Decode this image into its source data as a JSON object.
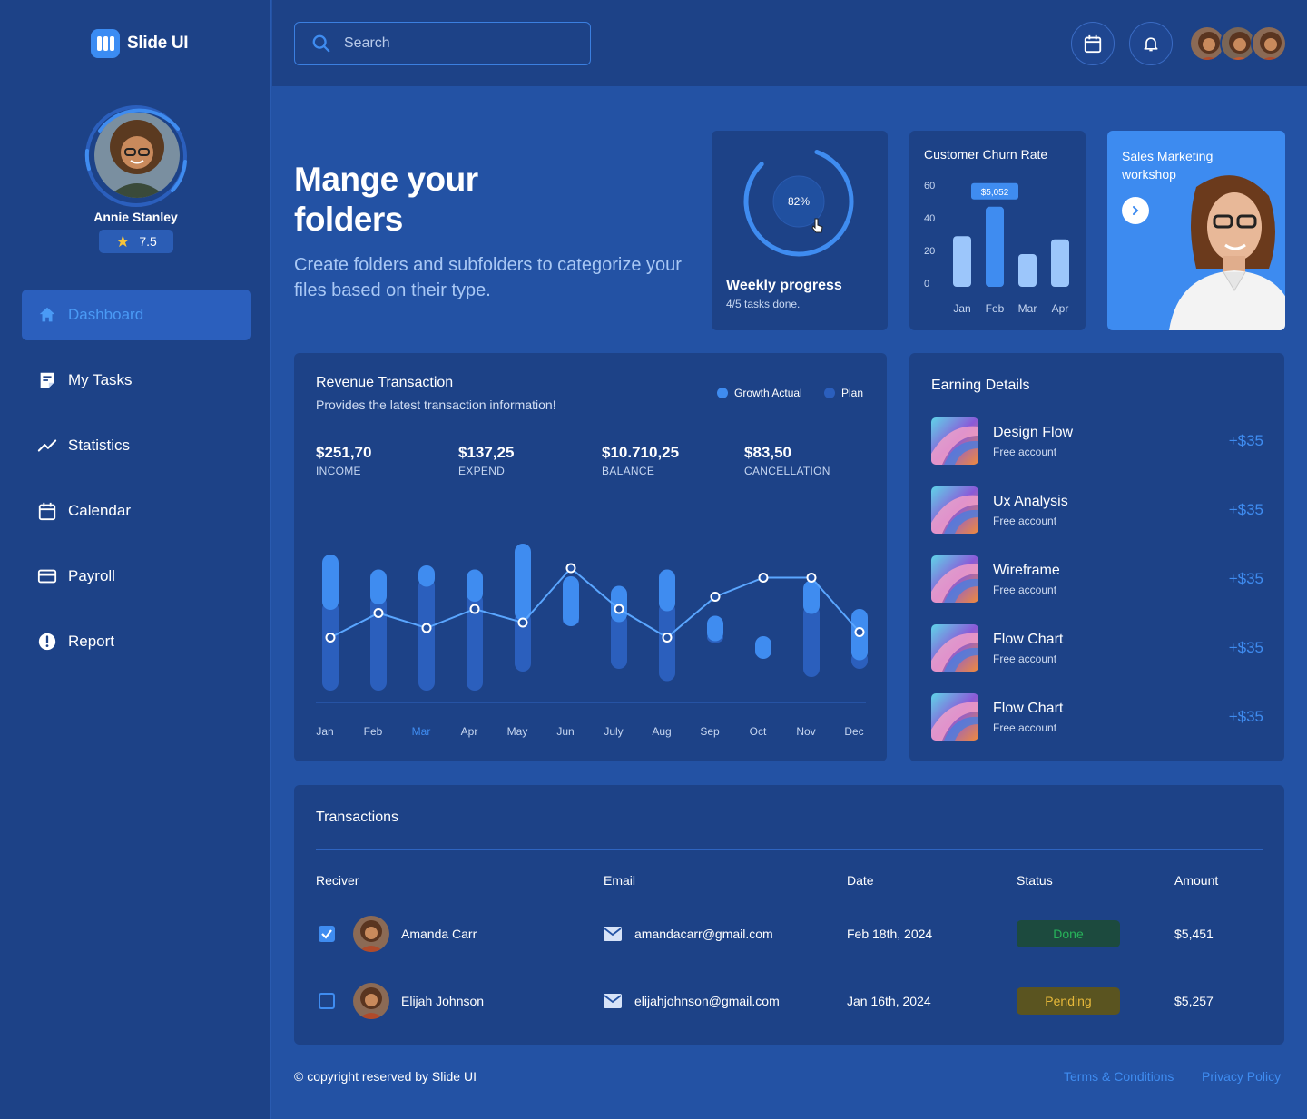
{
  "brand": {
    "name": "Slide UI"
  },
  "profile": {
    "name": "Annie Stanley",
    "rating": "7.5"
  },
  "nav": [
    {
      "label": "Dashboard",
      "icon": "home-icon",
      "active": true
    },
    {
      "label": "My Tasks",
      "icon": "tasks-icon"
    },
    {
      "label": "Statistics",
      "icon": "statistics-icon"
    },
    {
      "label": "Calendar",
      "icon": "calendar-icon"
    },
    {
      "label": "Payroll",
      "icon": "payroll-icon"
    },
    {
      "label": "Report",
      "icon": "report-icon"
    }
  ],
  "search": {
    "placeholder": "Search"
  },
  "hero": {
    "title_line1": "Mange your",
    "title_line2": "folders",
    "subtitle": "Create folders and subfolders to categorize your files based on their type."
  },
  "progress": {
    "percent_label": "82%",
    "fraction": 0.82,
    "title": "Weekly progress",
    "subtitle": "4/5 tasks done."
  },
  "churn": {
    "title": "Customer Churn Rate",
    "y_ticks": [
      "60",
      "40",
      "20",
      "0"
    ],
    "months": [
      "Jan",
      "Feb",
      "Mar",
      "Apr"
    ],
    "values": [
      31,
      49,
      20,
      29
    ],
    "ylim": [
      0,
      60
    ],
    "highlight_index": 1,
    "highlight_label": "$5,052"
  },
  "promo": {
    "title": "Sales Marketing workshop"
  },
  "revenue": {
    "title": "Revenue Transaction",
    "subtitle": "Provides the latest transaction information!",
    "legend": [
      {
        "label": "Growth Actual",
        "color": "#3f8cf0"
      },
      {
        "label": "Plan",
        "color": "#2b5fbd"
      }
    ],
    "stats": [
      {
        "value": "$251,70",
        "label": "INCOME"
      },
      {
        "value": "$137,25",
        "label": "EXPEND"
      },
      {
        "value": "$10.710,25",
        "label": "BALANCE"
      },
      {
        "value": "$83,50",
        "label": "CANCELLATION"
      }
    ],
    "months": [
      "Jan",
      "Feb",
      "Mar",
      "Apr",
      "May",
      "Jun",
      "July",
      "Aug",
      "Sep",
      "Oct",
      "Nov",
      "Dec"
    ],
    "highlight_month_index": 2
  },
  "chart_data": {
    "type": "bar",
    "categories": [
      "Jan",
      "Feb",
      "Mar",
      "Apr",
      "May",
      "Jun",
      "July",
      "Aug",
      "Sep",
      "Oct",
      "Nov",
      "Dec"
    ],
    "series": [
      {
        "name": "Growth Actual",
        "ranges": [
          [
            74,
            108
          ],
          [
            78,
            97
          ],
          [
            91,
            100
          ],
          [
            80,
            97
          ],
          [
            66,
            116
          ],
          [
            62,
            92
          ],
          [
            65,
            85
          ],
          [
            73,
            97
          ],
          [
            51,
            63
          ],
          [
            38,
            48
          ],
          [
            71,
            89
          ],
          [
            37,
            68
          ]
        ]
      },
      {
        "name": "Plan",
        "ranges": [
          [
            8,
            74
          ],
          [
            8,
            78
          ],
          [
            8,
            91
          ],
          [
            8,
            80
          ],
          [
            22,
            66
          ],
          [
            56,
            62
          ],
          [
            24,
            65
          ],
          [
            15,
            73
          ],
          [
            43,
            51
          ],
          [
            33,
            38
          ],
          [
            18,
            71
          ],
          [
            24,
            37
          ]
        ]
      },
      {
        "name": "Trend",
        "values": [
          47,
          65,
          54,
          68,
          58,
          98,
          68,
          47,
          77,
          91,
          91,
          51
        ]
      }
    ],
    "ylim": [
      0,
      120
    ]
  },
  "earning": {
    "title": "Earning Details",
    "items": [
      {
        "name": "Design Flow",
        "sub": "Free account",
        "amount": "+$35"
      },
      {
        "name": "Ux Analysis",
        "sub": "Free account",
        "amount": "+$35"
      },
      {
        "name": "Wireframe",
        "sub": "Free account",
        "amount": "+$35"
      },
      {
        "name": "Flow Chart",
        "sub": "Free account",
        "amount": "+$35"
      },
      {
        "name": "Flow Chart",
        "sub": "Free account",
        "amount": "+$35"
      }
    ]
  },
  "transactions": {
    "title": "Transactions",
    "headers": [
      "Reciver",
      "Email",
      "Date",
      "Status",
      "Amount"
    ],
    "rows": [
      {
        "checked": true,
        "name": "Amanda Carr",
        "email": "amandacarr@gmail.com",
        "date": "Feb 18th, 2024",
        "status": "Done",
        "amount": "$5,451"
      },
      {
        "checked": false,
        "name": "Elijah Johnson",
        "email": "elijahjohnson@gmail.com",
        "date": "Jan 16th, 2024",
        "status": "Pending",
        "amount": "$5,257"
      }
    ]
  },
  "footer": {
    "copyright": "© copyright reserved by Slide UI",
    "links": [
      "Terms & Conditions",
      "Privacy Policy"
    ]
  },
  "colors": {
    "accent": "#3f8cf0",
    "done": "#27b35a",
    "pending": "#e6b83a",
    "sidebar": "#1d4287",
    "background": "#2352a4"
  }
}
